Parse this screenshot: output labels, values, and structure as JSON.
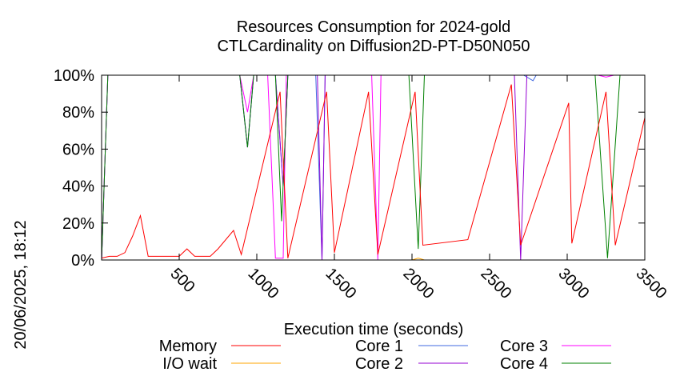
{
  "chart_data": {
    "type": "line",
    "title": "Resources Consumption for 2024-gold",
    "subtitle": "CTLCardinality on Diffusion2D-PT-D50N050",
    "xlabel": "Execution time (seconds)",
    "ylabel": "",
    "side_label": "20/06/2025, 18:12",
    "xlim": [
      0,
      3500
    ],
    "ylim": [
      0,
      100
    ],
    "x_ticks": [
      500,
      1000,
      1500,
      2000,
      2500,
      3000,
      3500
    ],
    "y_ticks": [
      0,
      20,
      40,
      60,
      80,
      100
    ],
    "y_tick_labels": [
      "0%",
      "20%",
      "40%",
      "60%",
      "80%",
      "100%"
    ],
    "grid": false,
    "legend_position": "bottom",
    "series": [
      {
        "name": "Memory",
        "color": "#ff0000",
        "points": [
          [
            0,
            1
          ],
          [
            50,
            2
          ],
          [
            100,
            2
          ],
          [
            150,
            4
          ],
          [
            200,
            13
          ],
          [
            250,
            24
          ],
          [
            300,
            2
          ],
          [
            350,
            2
          ],
          [
            400,
            2
          ],
          [
            450,
            2
          ],
          [
            500,
            2
          ],
          [
            550,
            6
          ],
          [
            600,
            2
          ],
          [
            650,
            2
          ],
          [
            700,
            2
          ],
          [
            750,
            6
          ],
          [
            850,
            16
          ],
          [
            900,
            3
          ],
          [
            1150,
            91
          ],
          [
            1200,
            1
          ],
          [
            1450,
            91
          ],
          [
            1500,
            4
          ],
          [
            1720,
            91
          ],
          [
            1780,
            3
          ],
          [
            2020,
            91
          ],
          [
            2070,
            8
          ],
          [
            2360,
            11
          ],
          [
            2640,
            95
          ],
          [
            2700,
            8
          ],
          [
            3010,
            85
          ],
          [
            3030,
            9
          ],
          [
            3250,
            91
          ],
          [
            3310,
            8
          ],
          [
            3500,
            77
          ]
        ]
      },
      {
        "name": "I/O wait",
        "color": "#ffa500",
        "points": [
          [
            0,
            0
          ],
          [
            2000,
            0
          ],
          [
            2040,
            1
          ],
          [
            2080,
            0
          ],
          [
            3500,
            0
          ]
        ]
      },
      {
        "name": "Core 1",
        "color": "#4169e1",
        "points": [
          [
            0,
            0
          ],
          [
            40,
            100
          ],
          [
            890,
            100
          ],
          [
            940,
            61
          ],
          [
            980,
            100
          ],
          [
            1120,
            100
          ],
          [
            1170,
            40
          ],
          [
            1200,
            100
          ],
          [
            1380,
            100
          ],
          [
            1420,
            0
          ],
          [
            1440,
            100
          ],
          [
            2720,
            100
          ],
          [
            2780,
            97
          ],
          [
            2800,
            100
          ],
          [
            3500,
            100
          ]
        ]
      },
      {
        "name": "Core 2",
        "color": "#9400d3",
        "points": [
          [
            0,
            0
          ],
          [
            40,
            100
          ],
          [
            890,
            100
          ],
          [
            940,
            61
          ],
          [
            980,
            100
          ],
          [
            1120,
            100
          ],
          [
            1170,
            40
          ],
          [
            1200,
            100
          ],
          [
            1390,
            100
          ],
          [
            1420,
            0
          ],
          [
            1440,
            100
          ],
          [
            2660,
            100
          ],
          [
            2700,
            0
          ],
          [
            2740,
            100
          ],
          [
            3500,
            100
          ]
        ]
      },
      {
        "name": "Core 3",
        "color": "#ff00ff",
        "points": [
          [
            0,
            0
          ],
          [
            40,
            100
          ],
          [
            890,
            100
          ],
          [
            940,
            80
          ],
          [
            980,
            100
          ],
          [
            1070,
            100
          ],
          [
            1120,
            1
          ],
          [
            1170,
            1
          ],
          [
            1190,
            100
          ],
          [
            1740,
            100
          ],
          [
            1780,
            0
          ],
          [
            1800,
            100
          ],
          [
            3200,
            100
          ],
          [
            3250,
            99
          ],
          [
            3300,
            100
          ],
          [
            3500,
            100
          ]
        ]
      },
      {
        "name": "Core 4",
        "color": "#008000",
        "points": [
          [
            0,
            0
          ],
          [
            40,
            100
          ],
          [
            890,
            100
          ],
          [
            940,
            61
          ],
          [
            980,
            100
          ],
          [
            1120,
            100
          ],
          [
            1160,
            21
          ],
          [
            1200,
            100
          ],
          [
            1980,
            100
          ],
          [
            2040,
            6
          ],
          [
            2080,
            100
          ],
          [
            3180,
            100
          ],
          [
            3260,
            1
          ],
          [
            3340,
            100
          ],
          [
            3500,
            100
          ]
        ]
      }
    ]
  }
}
